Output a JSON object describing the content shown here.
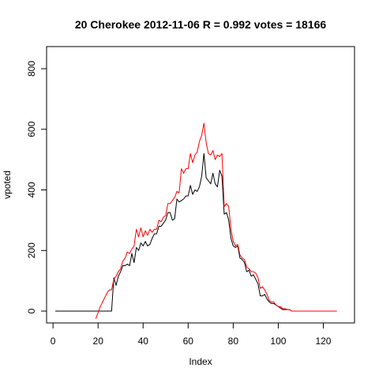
{
  "chart_data": {
    "type": "line",
    "title": "20 Cherokee 2012-11-06 R = 0.992 votes = 18166",
    "xlabel": "Index",
    "ylabel": "vpoted",
    "xlim": [
      1,
      130
    ],
    "ylim": [
      -20,
      860
    ],
    "xticks": [
      "0",
      "20",
      "40",
      "60",
      "80",
      "100",
      "120"
    ],
    "yticks": [
      "0",
      "200",
      "400",
      "600",
      "800"
    ],
    "grid": false,
    "series": [
      {
        "color": "#000000",
        "values": [
          0,
          0,
          0,
          0,
          0,
          0,
          0,
          0,
          0,
          0,
          0,
          0,
          0,
          0,
          0,
          0,
          0,
          0,
          0,
          0,
          0,
          0,
          0,
          0,
          0,
          0,
          110,
          85,
          115,
          130,
          150,
          150,
          155,
          150,
          190,
          160,
          210,
          200,
          225,
          215,
          230,
          215,
          220,
          240,
          255,
          255,
          280,
          280,
          290,
          300,
          325,
          325,
          300,
          305,
          370,
          360,
          365,
          370,
          380,
          380,
          415,
          385,
          400,
          395,
          410,
          445,
          520,
          440,
          430,
          420,
          455,
          420,
          410,
          465,
          445,
          320,
          325,
          300,
          240,
          215,
          210,
          215,
          175,
          170,
          160,
          130,
          135,
          115,
          120,
          105,
          90,
          50,
          50,
          55,
          40,
          30,
          25,
          25,
          20,
          15,
          10,
          5,
          5,
          5,
          5,
          0,
          0,
          0,
          0,
          0,
          0,
          0,
          0,
          0,
          0,
          0,
          0,
          0,
          0,
          0,
          0,
          0,
          0,
          0,
          0,
          0
        ]
      },
      {
        "color": "#ff0000",
        "values": [
          null,
          null,
          null,
          null,
          null,
          null,
          null,
          null,
          null,
          null,
          null,
          null,
          null,
          null,
          null,
          null,
          null,
          null,
          -25,
          -5,
          15,
          30,
          45,
          60,
          70,
          70,
          105,
          115,
          130,
          140,
          165,
          175,
          195,
          190,
          205,
          215,
          270,
          245,
          275,
          245,
          265,
          250,
          270,
          260,
          270,
          270,
          300,
          295,
          310,
          315,
          355,
          355,
          365,
          375,
          395,
          390,
          470,
          455,
          470,
          470,
          520,
          490,
          515,
          525,
          560,
          580,
          620,
          555,
          520,
          515,
          530,
          500,
          515,
          510,
          520,
          345,
          355,
          345,
          270,
          230,
          215,
          220,
          185,
          175,
          170,
          145,
          140,
          130,
          130,
          125,
          110,
          75,
          80,
          70,
          55,
          35,
          30,
          30,
          20,
          15,
          15,
          8,
          8,
          5,
          5,
          0,
          0,
          0,
          0,
          0,
          0,
          0,
          0,
          0,
          0,
          0,
          0,
          0,
          0,
          0,
          0,
          0,
          0,
          0,
          0,
          0
        ]
      }
    ]
  }
}
